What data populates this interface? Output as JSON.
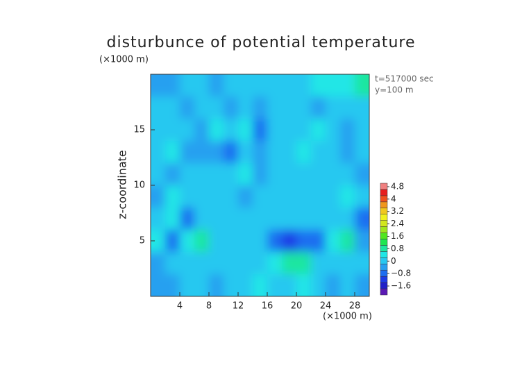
{
  "chart_data": {
    "type": "heatmap",
    "title": "disturbunce of potential temperature",
    "y_unit": "(×1000 m)",
    "x_unit": "(×1000 m)",
    "ylabel": "z-coordinate",
    "annotations": [
      "t=517000 sec",
      "y=100 m"
    ],
    "x": [
      1,
      3,
      5,
      7,
      9,
      11,
      13,
      15,
      17,
      19,
      21,
      23,
      25,
      27,
      29
    ],
    "y": [
      19,
      17,
      15,
      13,
      11,
      9,
      7,
      5,
      3,
      1
    ],
    "z": [
      [
        -0.3,
        -0.2,
        0.1,
        0.2,
        -0.3,
        0.1,
        0.2,
        0.1,
        0.2,
        0.1,
        0.3,
        0.6,
        0.7,
        0.6,
        0.9
      ],
      [
        0.2,
        0.1,
        -0.2,
        0.2,
        0.1,
        -0.4,
        0.3,
        -0.3,
        0.1,
        0.2,
        0.2,
        -0.2,
        0.1,
        0.2,
        0.3
      ],
      [
        0.3,
        0.3,
        0.1,
        -0.2,
        0.4,
        0.1,
        0.5,
        -0.5,
        0.2,
        0.3,
        0.1,
        0.4,
        0.1,
        -0.3,
        0.2
      ],
      [
        0.1,
        0.4,
        -0.4,
        -0.2,
        -0.3,
        -0.5,
        0.3,
        -0.4,
        0.3,
        0.2,
        0.5,
        0.2,
        0.3,
        -0.2,
        0.1
      ],
      [
        0.2,
        -0.3,
        0.1,
        0.3,
        0.1,
        0.2,
        0.4,
        -0.3,
        0.1,
        0.3,
        0.2,
        0.3,
        0.1,
        0.2,
        -0.2
      ],
      [
        -0.4,
        0.5,
        0.2,
        0.3,
        0.2,
        0.1,
        -0.2,
        0.1,
        0.2,
        0.3,
        0.1,
        0.2,
        0.2,
        0.4,
        0.1
      ],
      [
        0.2,
        0.6,
        -0.6,
        0.2,
        0.3,
        0.1,
        0.2,
        0.2,
        0.3,
        0.2,
        0.1,
        0.3,
        0.2,
        0.3,
        -0.6
      ],
      [
        0.4,
        -0.6,
        0.5,
        0.9,
        0.2,
        0.1,
        0.3,
        0.1,
        -0.6,
        -0.9,
        -0.7,
        -0.6,
        0.5,
        0.8,
        -0.3
      ],
      [
        -0.2,
        0.1,
        0.2,
        0.3,
        0.1,
        0.2,
        0.3,
        0.2,
        0.4,
        0.8,
        1.1,
        0.2,
        0.3,
        0.1,
        0.2
      ],
      [
        -0.4,
        -0.3,
        0.2,
        0.1,
        -0.2,
        0.3,
        0.2,
        0.4,
        0.2,
        0.3,
        0.5,
        0.3,
        -0.2,
        0.1,
        -0.3
      ]
    ],
    "xlim": [
      0,
      30
    ],
    "ylim": [
      0,
      20
    ],
    "xticks": [
      4,
      8,
      12,
      16,
      20,
      24,
      28
    ],
    "yticks": [
      5,
      10,
      15
    ],
    "colorbar": {
      "levels": [
        -2.0,
        -1.6,
        -1.2,
        -0.8,
        -0.4,
        0,
        0.4,
        0.8,
        1.2,
        1.6,
        2.0,
        2.4,
        2.8,
        3.2,
        3.6,
        4.0,
        4.4,
        4.8,
        5.2
      ],
      "colors": [
        "#5a1ab4",
        "#2020c8",
        "#1e3ce6",
        "#1e6ef0",
        "#28a0f0",
        "#28c8f0",
        "#20e6e6",
        "#1ee6a0",
        "#1ee650",
        "#50e61e",
        "#a0e61e",
        "#d2e61e",
        "#f0f01e",
        "#f0c81e",
        "#f0961e",
        "#f0501e",
        "#e61e1e",
        "#f08080"
      ],
      "ticks": [
        {
          "value": -1.6,
          "label": "−1.6"
        },
        {
          "value": -0.8,
          "label": "−0.8"
        },
        0,
        0.8,
        1.6,
        2.4,
        3.2,
        4,
        4.8
      ]
    }
  }
}
